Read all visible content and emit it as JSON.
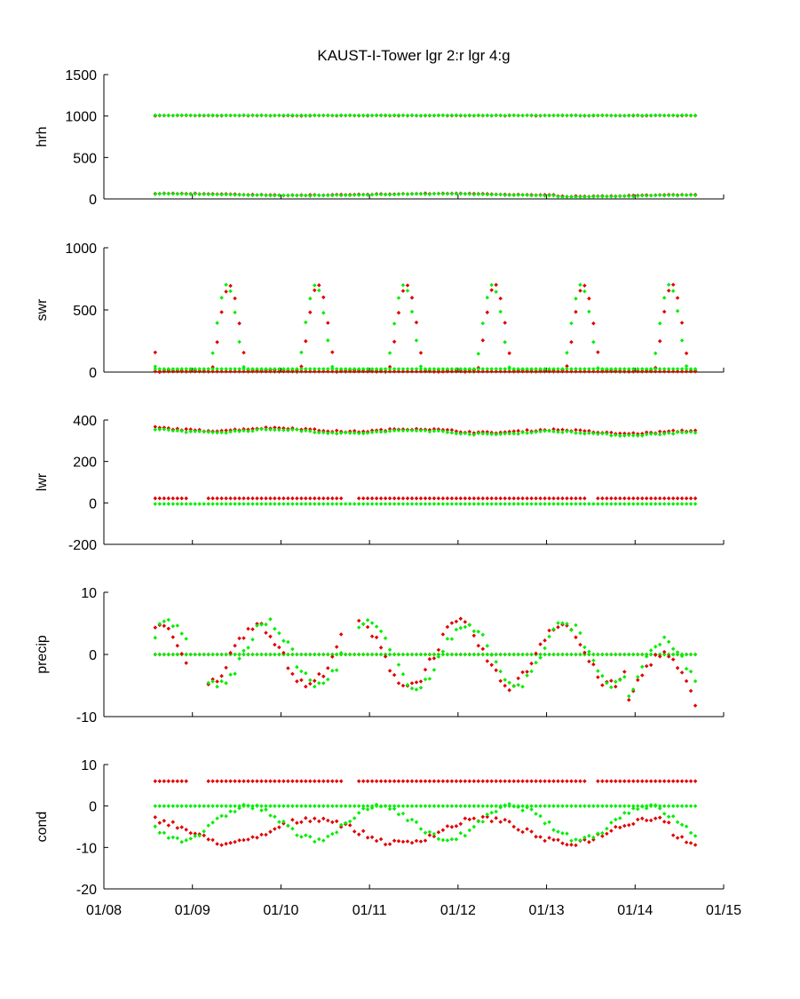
{
  "chart_data": {
    "type": "scatter",
    "title": "KAUST-I-Tower  lgr 2:r lgr 4:g",
    "colors": {
      "lgr2": "#e00000",
      "lgr4": "#00ee00"
    },
    "x_ticks": [
      "01/08",
      "01/09",
      "01/10",
      "01/11",
      "01/12",
      "01/13",
      "01/14",
      "01/15"
    ],
    "xlim": [
      0,
      7
    ],
    "grid": false,
    "panels": [
      {
        "ylabel": "hrh",
        "ylim": [
          0,
          1500
        ],
        "yticks": [
          "0",
          "500",
          "1000",
          "1500"
        ],
        "ytick_values": [
          0,
          500,
          1000,
          1500
        ]
      },
      {
        "ylabel": "swr",
        "ylim": [
          0,
          1000
        ],
        "yticks": [
          "0",
          "500",
          "1000"
        ],
        "ytick_values": [
          0,
          500,
          1000
        ]
      },
      {
        "ylabel": "lwr",
        "ylim": [
          -200,
          400
        ],
        "yticks": [
          "-200",
          "0",
          "200",
          "400"
        ],
        "ytick_values": [
          -200,
          0,
          200,
          400
        ]
      },
      {
        "ylabel": "precip",
        "ylim": [
          -10,
          10
        ],
        "yticks": [
          "-10",
          "0",
          "10"
        ],
        "ytick_values": [
          -10,
          0,
          10
        ]
      },
      {
        "ylabel": "cond",
        "ylim": [
          -20,
          10
        ],
        "yticks": [
          "-20",
          "-10",
          "0",
          "10"
        ],
        "ytick_values": [
          -20,
          -10,
          0,
          10
        ]
      }
    ]
  }
}
